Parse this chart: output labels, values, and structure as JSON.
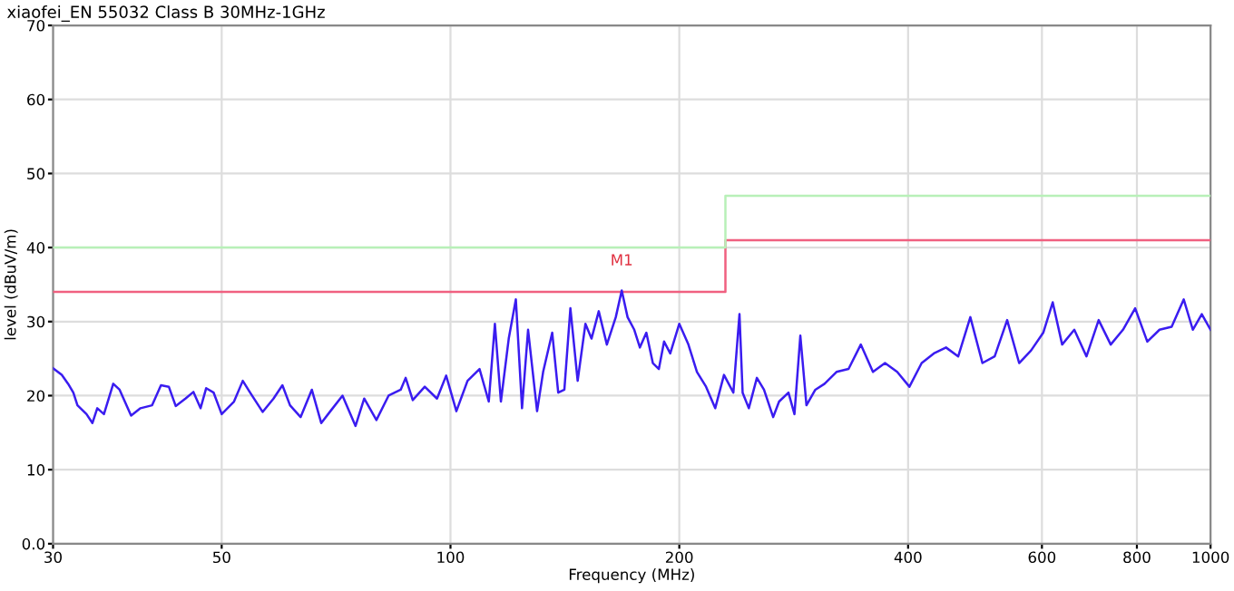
{
  "chart_data": {
    "type": "line",
    "title": "xiaofei_EN 55032 Class B 30MHz-1GHz",
    "xlabel": "Frequency (MHz)",
    "ylabel": "level (dBuV/m)",
    "log": "x",
    "grid": true,
    "xlim": [
      30,
      1000
    ],
    "xticks": [
      30,
      50,
      100,
      200,
      400,
      600,
      800,
      1000
    ],
    "ylim": [
      0,
      70
    ],
    "yticks": [
      {
        "value": 0,
        "label": "0.0"
      },
      10,
      20,
      30,
      40,
      50,
      60,
      70
    ],
    "annotations": [
      {
        "text": "M1",
        "x": 168,
        "y": 34.2
      }
    ],
    "series": [
      {
        "color": "#3a1cf0",
        "x": [
          30.0,
          30.8,
          31.4,
          31.9,
          32.3,
          33.2,
          33.8,
          34.3,
          35.0,
          36.0,
          36.7,
          38.0,
          39.1,
          40.5,
          41.6,
          42.6,
          43.5,
          44.8,
          45.9,
          46.9,
          47.7,
          48.8,
          50.0,
          51.9,
          53.3,
          54.5,
          56.6,
          58.5,
          60.1,
          61.5,
          63.5,
          65.7,
          67.6,
          69.5,
          72.1,
          75.0,
          77.0,
          79.9,
          82.9,
          86.0,
          87.3,
          89.2,
          92.5,
          96.0,
          98.7,
          101.8,
          105.3,
          109.2,
          112.3,
          114.4,
          116.5,
          119.3,
          121.9,
          124.2,
          126.5,
          130.0,
          132.4,
          136.1,
          138.6,
          141.2,
          143.8,
          147.0,
          150.5,
          153.3,
          156.7,
          160.6,
          165.0,
          168,
          171,
          174.5,
          177.5,
          181,
          184.6,
          188,
          191,
          194.6,
          200,
          205.6,
          211,
          216.9,
          223,
          229,
          235.6,
          240,
          242.3,
          246.9,
          253,
          258.5,
          265.8,
          270.6,
          278.4,
          283.5,
          288.6,
          294,
          302,
          310.6,
          322,
          334,
          346.6,
          359.6,
          373,
          387,
          401.6,
          416.8,
          432.4,
          448.7,
          465.6,
          483,
          501,
          520,
          540,
          560,
          580.6,
          602.4,
          619.9,
          637.9,
          661.8,
          686.7,
          712.5,
          739,
          767,
          795.8,
          825.6,
          856.7,
          888.8,
          922,
          947.7,
          973.8,
          1000
        ],
        "values": [
          23.7,
          22.8,
          21.6,
          20.4,
          18.7,
          17.5,
          16.3,
          18.3,
          17.5,
          21.6,
          20.8,
          17.3,
          18.3,
          18.7,
          21.4,
          21.2,
          18.6,
          19.6,
          20.5,
          18.3,
          21.0,
          20.4,
          17.5,
          19.2,
          22.0,
          20.4,
          17.8,
          19.6,
          21.4,
          18.7,
          17.1,
          20.8,
          16.3,
          17.9,
          20.0,
          15.9,
          19.6,
          16.7,
          20.0,
          20.8,
          22.4,
          19.4,
          21.2,
          19.6,
          22.7,
          17.9,
          22.0,
          23.6,
          19.2,
          29.7,
          19.2,
          27.7,
          33.0,
          18.3,
          28.9,
          17.9,
          23.2,
          28.5,
          20.4,
          20.8,
          31.8,
          22.0,
          29.7,
          27.7,
          31.4,
          26.9,
          30.6,
          34.2,
          30.6,
          28.9,
          26.5,
          28.5,
          24.4,
          23.6,
          27.3,
          25.7,
          29.7,
          26.9,
          23.2,
          21.2,
          18.3,
          22.8,
          20.4,
          31.0,
          20.4,
          18.3,
          22.4,
          20.8,
          17.1,
          19.2,
          20.4,
          17.5,
          28.1,
          18.7,
          20.8,
          21.6,
          23.2,
          23.6,
          26.9,
          23.2,
          24.4,
          23.2,
          21.2,
          24.4,
          25.7,
          26.5,
          25.3,
          30.6,
          24.4,
          25.3,
          30.2,
          24.4,
          26.1,
          28.5,
          32.6,
          26.9,
          28.9,
          25.3,
          30.2,
          26.9,
          28.9,
          31.8,
          27.3,
          28.9,
          29.3,
          33.0,
          28.9,
          31.0,
          28.9
        ]
      },
      {
        "color": "#b8f0b8",
        "x": [
          30,
          230,
          230,
          1000
        ],
        "values": [
          40,
          40,
          47,
          47
        ]
      },
      {
        "color": "#f06080",
        "x": [
          30,
          230,
          230,
          1000
        ],
        "values": [
          34,
          34,
          41,
          41
        ]
      }
    ]
  }
}
